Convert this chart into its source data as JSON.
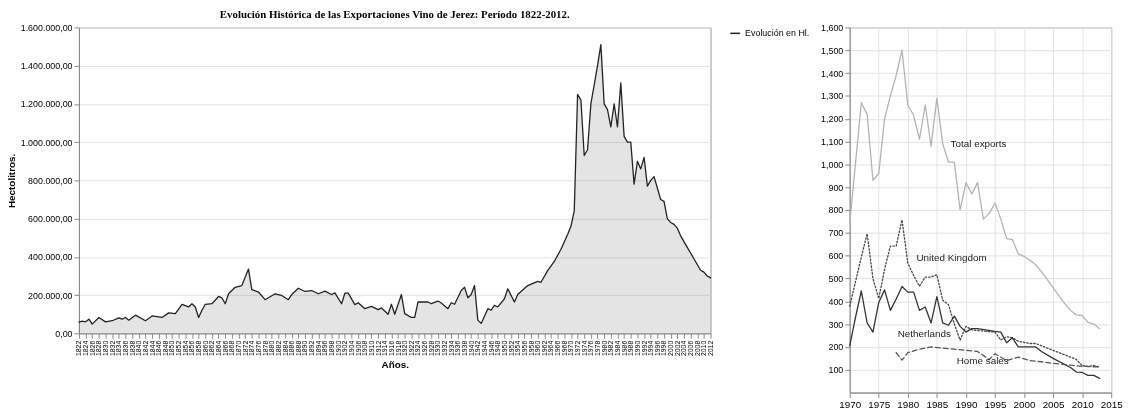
{
  "chart_data": [
    {
      "type": "area",
      "title": "Evolución Histórica de las Exportaciones Vino de Jerez: Período 1822-2012.",
      "xlabel": "Años.",
      "ylabel": "Hectolitros.",
      "legend": "right",
      "grid": "y",
      "xlim": [
        1822,
        2012
      ],
      "xticks": [
        1822,
        1824,
        1826,
        1828,
        1830,
        1832,
        1834,
        1836,
        1838,
        1840,
        1842,
        1844,
        1846,
        1848,
        1850,
        1852,
        1854,
        1856,
        1858,
        1860,
        1862,
        1864,
        1866,
        1868,
        1870,
        1872,
        1874,
        1876,
        1878,
        1880,
        1882,
        1884,
        1886,
        1888,
        1890,
        1892,
        1894,
        1896,
        1898,
        1900,
        1902,
        1904,
        1906,
        1908,
        1910,
        1912,
        1914,
        1916,
        1918,
        1920,
        1922,
        1924,
        1926,
        1928,
        1930,
        1932,
        1934,
        1936,
        1938,
        1940,
        1942,
        1944,
        1946,
        1948,
        1950,
        1952,
        1954,
        1956,
        1958,
        1960,
        1962,
        1964,
        1966,
        1968,
        1970,
        1972,
        1974,
        1976,
        1978,
        1980,
        1982,
        1984,
        1986,
        1988,
        1990,
        1992,
        1994,
        1996,
        1998,
        2000,
        2002,
        2004,
        2006,
        2008,
        2010,
        2012
      ],
      "ylim": [
        0,
        1600000
      ],
      "yticks": [
        {
          "value": 0,
          "label": "0,00"
        },
        {
          "value": 200000,
          "label": "200.000,00"
        },
        {
          "value": 400000,
          "label": "400.000,00"
        },
        {
          "value": 600000,
          "label": "600.000,00"
        },
        {
          "value": 800000,
          "label": "800.000,00"
        },
        {
          "value": 1000000,
          "label": "1.000.000,00"
        },
        {
          "value": 1200000,
          "label": "1.200.000,00"
        },
        {
          "value": 1400000,
          "label": "1.400.000,00"
        },
        {
          "value": 1600000,
          "label": "1.600.000,00"
        }
      ],
      "x": [
        1822,
        1823,
        1824,
        1825,
        1826,
        1828,
        1830,
        1832,
        1834,
        1835,
        1836,
        1837,
        1839,
        1842,
        1844,
        1847,
        1849,
        1851,
        1853,
        1855,
        1856,
        1857,
        1858,
        1859,
        1860,
        1862,
        1864,
        1865,
        1866,
        1867,
        1869,
        1871,
        1873,
        1874,
        1876,
        1878,
        1881,
        1883,
        1885,
        1886,
        1888,
        1890,
        1892,
        1894,
        1896,
        1898,
        1899,
        1901,
        1902,
        1903,
        1905,
        1906,
        1908,
        1910,
        1912,
        1913,
        1915,
        1916,
        1917,
        1919,
        1920,
        1922,
        1923,
        1924,
        1927,
        1928,
        1930,
        1931,
        1933,
        1934,
        1935,
        1937,
        1938,
        1939,
        1940,
        1941,
        1942,
        1943,
        1945,
        1946,
        1947,
        1948,
        1950,
        1951,
        1953,
        1954,
        1957,
        1960,
        1961,
        1963,
        1965,
        1967,
        1969,
        1970,
        1971,
        1972,
        1973,
        1974,
        1975,
        1976,
        1977,
        1978,
        1979,
        1980,
        1981,
        1982,
        1983,
        1984,
        1985,
        1986,
        1987,
        1988,
        1989,
        1990,
        1991,
        1992,
        1993,
        1994,
        1995,
        1996,
        1997,
        1998,
        1999,
        2000,
        2001,
        2002,
        2003,
        2004,
        2005,
        2006,
        2007,
        2008,
        2009,
        2010,
        2011,
        2012
      ],
      "series": [
        {
          "name": "Evolución en Hl.",
          "color": "#222222",
          "values": [
            59000,
            64000,
            60000,
            74000,
            48000,
            83000,
            60000,
            66000,
            81000,
            74000,
            83000,
            69000,
            95000,
            66000,
            91000,
            83000,
            107000,
            103000,
            152000,
            138000,
            155000,
            138000,
            83000,
            121000,
            152000,
            155000,
            193000,
            186000,
            155000,
            207000,
            241000,
            250000,
            336000,
            229000,
            216000,
            176000,
            207000,
            198000,
            176000,
            203000,
            236000,
            219000,
            224000,
            207000,
            221000,
            203000,
            212000,
            155000,
            210000,
            210000,
            150000,
            160000,
            129000,
            141000,
            124000,
            133000,
            100000,
            152000,
            100000,
            203000,
            103000,
            83000,
            83000,
            164000,
            164000,
            155000,
            169000,
            159000,
            129000,
            160000,
            152000,
            224000,
            241000,
            186000,
            203000,
            250000,
            69000,
            52000,
            129000,
            121000,
            147000,
            138000,
            181000,
            233000,
            164000,
            203000,
            250000,
            272000,
            267000,
            328000,
            376000,
            440000,
            517000,
            560000,
            640000,
            1250000,
            1220000,
            930000,
            960000,
            1200000,
            1300000,
            1400000,
            1510000,
            1200000,
            1170000,
            1080000,
            1200000,
            1080000,
            1310000,
            1030000,
            1000000,
            1000000,
            780000,
            900000,
            860000,
            920000,
            770000,
            800000,
            820000,
            760000,
            700000,
            690000,
            600000,
            580000,
            570000,
            550000,
            510000,
            480000,
            450000,
            420000,
            390000,
            360000,
            330000,
            320000,
            300000,
            290000
          ]
        }
      ]
    },
    {
      "type": "line",
      "legend": false,
      "grid": true,
      "xlim": [
        1970,
        2015
      ],
      "xticks": [
        1970,
        1975,
        1980,
        1985,
        1990,
        1995,
        2000,
        2005,
        2010,
        2015
      ],
      "ylim": [
        0,
        1600
      ],
      "yticks": [
        100,
        200,
        300,
        400,
        500,
        600,
        700,
        800,
        900,
        {
          "value": 1000,
          "label": "1,000"
        },
        {
          "value": 1100,
          "label": "1,100"
        },
        {
          "value": 1200,
          "label": "1,200"
        },
        {
          "value": 1300,
          "label": "1,300"
        },
        {
          "value": 1400,
          "label": "1,400"
        },
        {
          "value": 1500,
          "label": "1,500"
        },
        {
          "value": 1600,
          "label": "1,600"
        }
      ],
      "series": [
        {
          "name": "Total exports",
          "color": "#b3b3b3",
          "line_style": "solid",
          "x": [
            1970,
            1972,
            1973,
            1974,
            1975,
            1976,
            1977,
            1978,
            1979,
            1980,
            1981,
            1982,
            1983,
            1984,
            1985,
            1986,
            1987,
            1988,
            1989,
            1990,
            1991,
            1992,
            1993,
            1994,
            1995,
            1996,
            1997,
            1998,
            1999,
            2000,
            2001,
            2002,
            2003,
            2004,
            2005,
            2006,
            2007,
            2008,
            2009,
            2010,
            2011,
            2012,
            2013
          ],
          "values": [
            740,
            1270,
            1220,
            930,
            960,
            1200,
            1300,
            1390,
            1500,
            1260,
            1215,
            1110,
            1260,
            1080,
            1290,
            1090,
            1010,
            1010,
            800,
            920,
            870,
            920,
            760,
            785,
            830,
            760,
            675,
            670,
            608,
            597,
            580,
            560,
            530,
            495,
            460,
            425,
            390,
            360,
            340,
            337,
            308,
            300,
            280
          ]
        },
        {
          "name": "United Kingdom",
          "color": "#444444",
          "line_style": "dotted",
          "x": [
            1970,
            1972,
            1973,
            1974,
            1975,
            1976,
            1977,
            1978,
            1979,
            1980,
            1981,
            1982,
            1983,
            1984,
            1985,
            1986,
            1987,
            1988,
            1989,
            1990,
            1991,
            1992,
            1995,
            1996,
            1997,
            1998,
            1999,
            2000,
            2001,
            2002,
            2003,
            2005,
            2008,
            2009,
            2010,
            2011,
            2012,
            2013
          ],
          "values": [
            378,
            594,
            696,
            500,
            412,
            540,
            642,
            642,
            757,
            567,
            513,
            466,
            506,
            506,
            516,
            405,
            385,
            300,
            230,
            290,
            275,
            272,
            265,
            230,
            245,
            240,
            225,
            220,
            215,
            215,
            205,
            185,
            155,
            145,
            118,
            115,
            118,
            112
          ]
        },
        {
          "name": "Netherlands",
          "color": "#333333",
          "line_style": "solid",
          "x": [
            1970,
            1971,
            1972,
            1973,
            1974,
            1975,
            1976,
            1977,
            1978,
            1979,
            1980,
            1981,
            1982,
            1983,
            1984,
            1985,
            1986,
            1987,
            1988,
            1989,
            1990,
            1991,
            1992,
            1995,
            1996,
            1997,
            1998,
            1999,
            2000,
            2002,
            2003,
            2005,
            2008,
            2009,
            2010,
            2011,
            2012,
            2013
          ],
          "values": [
            205,
            330,
            445,
            305,
            265,
            395,
            450,
            360,
            410,
            465,
            440,
            440,
            360,
            375,
            305,
            420,
            305,
            295,
            335,
            290,
            265,
            280,
            280,
            268,
            265,
            218,
            240,
            200,
            200,
            200,
            180,
            150,
            110,
            90,
            88,
            75,
            75,
            62
          ]
        },
        {
          "name": "Home sales",
          "color": "#555555",
          "line_style": "dashed",
          "x": [
            1978,
            1979,
            1980,
            1982,
            1984,
            1986,
            1988,
            1990,
            1992,
            1994,
            1995,
            1997,
            1999,
            2001,
            2003,
            2005,
            2008,
            2010,
            2013
          ],
          "values": [
            175,
            142,
            175,
            190,
            200,
            195,
            190,
            185,
            180,
            145,
            170,
            140,
            155,
            140,
            135,
            128,
            120,
            115,
            112
          ]
        }
      ]
    }
  ]
}
